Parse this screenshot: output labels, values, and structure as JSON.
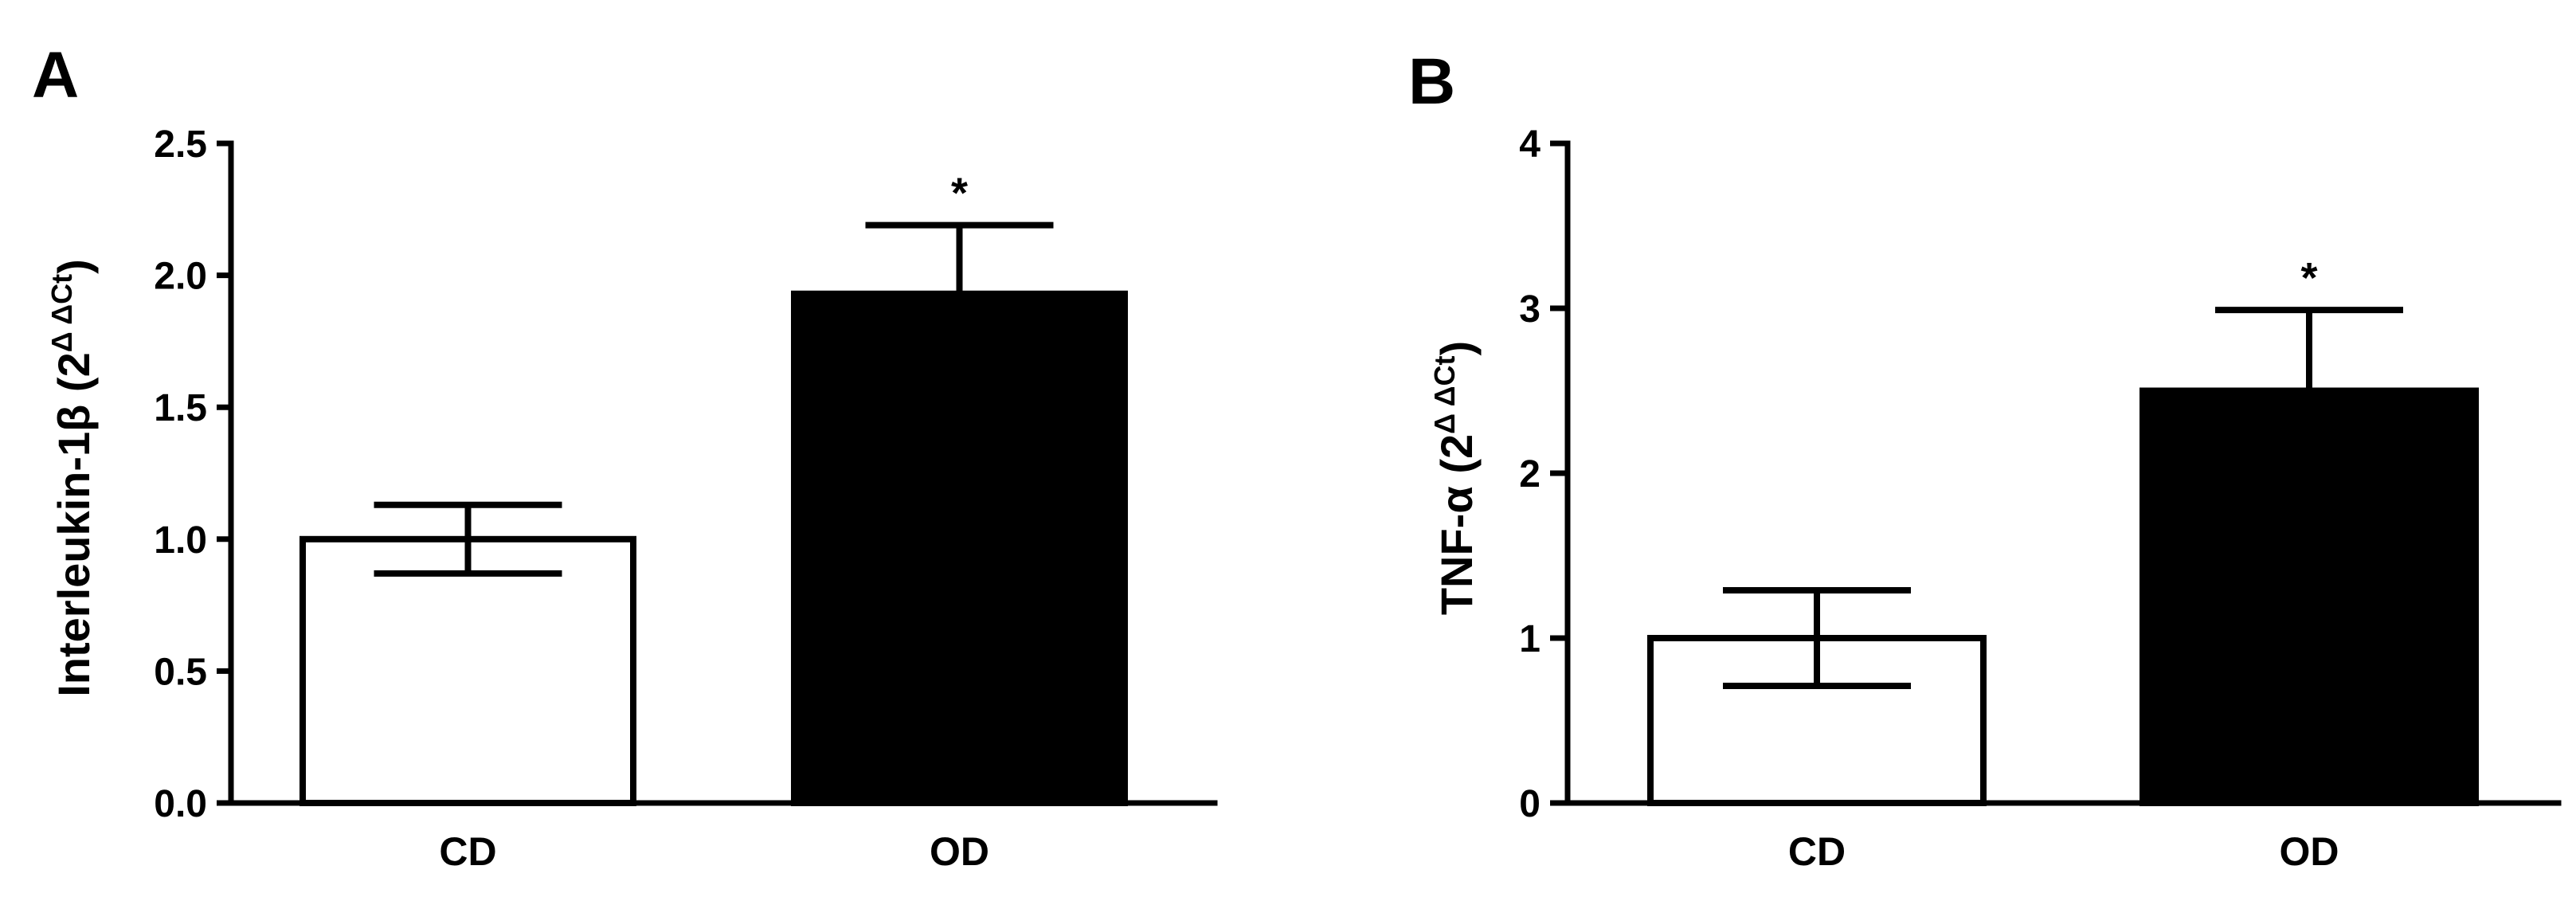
{
  "chart_data": [
    {
      "type": "bar",
      "panel": "A",
      "categories": [
        "CD",
        "OD"
      ],
      "values": [
        1.0,
        1.93
      ],
      "errors": [
        0.13,
        0.26
      ],
      "significance": [
        "",
        "*"
      ],
      "bar_colors": [
        "#ffffff",
        "#000000"
      ],
      "ylabel": {
        "main": "Interleukin-1β  (2",
        "sup": "Δ ΔCt",
        "close": ")"
      },
      "ylim": [
        0,
        2.5
      ],
      "yticks": [
        "0.0",
        "0.5",
        "1.0",
        "1.5",
        "2.0",
        "2.5"
      ],
      "ytick_values": [
        0,
        0.5,
        1.0,
        1.5,
        2.0,
        2.5
      ],
      "grid": false
    },
    {
      "type": "bar",
      "panel": "B",
      "categories": [
        "CD",
        "OD"
      ],
      "values": [
        1.0,
        2.5
      ],
      "errors": [
        0.29,
        0.49
      ],
      "significance": [
        "",
        "*"
      ],
      "bar_colors": [
        "#ffffff",
        "#000000"
      ],
      "ylabel": {
        "main": "TNF-α  (2",
        "sup": "Δ ΔCt",
        "close": ")"
      },
      "ylim": [
        0,
        4
      ],
      "yticks": [
        "0",
        "1",
        "2",
        "3",
        "4"
      ],
      "ytick_values": [
        0,
        1,
        2,
        3,
        4
      ],
      "grid": false
    }
  ]
}
